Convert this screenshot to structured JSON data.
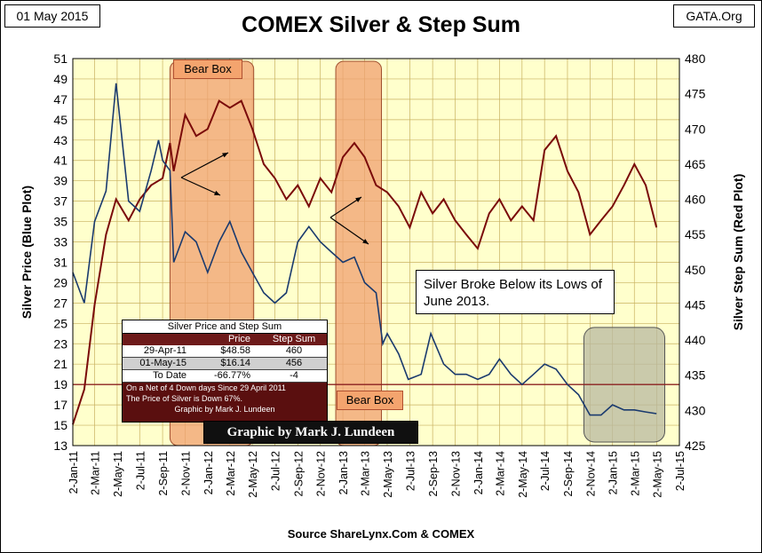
{
  "header": {
    "date": "01 May 2015",
    "title": "COMEX Silver & Step Sum",
    "site": "GATA.Org"
  },
  "footer": "Source ShareLynx.Com & COMEX",
  "colors": {
    "plot_bg": "#ffffcc",
    "grid": "#c8b060",
    "silver_line": "#1a3a6e",
    "stepsum_line": "#7a0a0a",
    "bear_box_fill": "#f0a070",
    "gray_box_fill": "#b8b8a0",
    "threshold_line": "#8b2020"
  },
  "annotations": {
    "bear_box_label": "Bear Box",
    "note": "Silver Broke Below its Lows of June 2013.",
    "credit": "Graphic by Mark J. Lundeen"
  },
  "info_table": {
    "title": "Silver Price and Step Sum",
    "headers": [
      "",
      "Price",
      "Step Sum"
    ],
    "rows": [
      [
        "29-Apr-11",
        "$48.58",
        "460"
      ],
      [
        "01-May-15",
        "$16.14",
        "456"
      ],
      [
        "To Date",
        "-66.77%",
        "-4"
      ]
    ],
    "notes": [
      "On a Net of 4 Down days Since 29 April 2011",
      "The Price of Silver is Down 67%."
    ],
    "credit": "Graphic by Mark J. Lundeen"
  },
  "chart_data": {
    "type": "line",
    "title": "COMEX Silver & Step Sum",
    "xlabel": "Source ShareLynx.Com & COMEX",
    "ylabel_left": "Silver Price  (Blue Plot)",
    "ylabel_right": "Silver Step Sum  (Red Plot)",
    "ylim_left": [
      13,
      51
    ],
    "ylim_right": [
      425,
      480
    ],
    "yticks_left": [
      13,
      15,
      17,
      19,
      21,
      23,
      25,
      27,
      29,
      31,
      33,
      35,
      37,
      39,
      41,
      43,
      45,
      47,
      49,
      51
    ],
    "yticks_right": [
      425,
      430,
      435,
      440,
      445,
      450,
      455,
      460,
      465,
      470,
      475,
      480
    ],
    "x_ticks": [
      "2-Jan-11",
      "2-Mar-11",
      "2-May-11",
      "2-Jul-11",
      "2-Sep-11",
      "2-Nov-11",
      "2-Jan-12",
      "2-Mar-12",
      "2-May-12",
      "2-Jul-12",
      "2-Sep-12",
      "2-Nov-12",
      "2-Jan-13",
      "2-Mar-13",
      "2-May-13",
      "2-Jul-13",
      "2-Sep-13",
      "2-Nov-13",
      "2-Jan-14",
      "2-Mar-14",
      "2-May-14",
      "2-Jul-14",
      "2-Sep-14",
      "2-Nov-14",
      "2-Jan-15",
      "2-Mar-15",
      "2-May-15",
      "2-Jul-15"
    ],
    "threshold_line_left": 19,
    "grid": true,
    "series": [
      {
        "name": "Silver Price",
        "axis": "left",
        "x": [
          "2-Jan-11",
          "2-Feb-11",
          "2-Mar-11",
          "2-Apr-11",
          "29-Apr-11",
          "2-Jun-11",
          "2-Jul-11",
          "2-Aug-11",
          "22-Aug-11",
          "2-Sep-11",
          "22-Sep-11",
          "2-Oct-11",
          "2-Nov-11",
          "2-Dec-11",
          "2-Jan-12",
          "2-Feb-12",
          "2-Mar-12",
          "2-Apr-12",
          "2-May-12",
          "2-Jun-12",
          "2-Jul-12",
          "2-Aug-12",
          "2-Sep-12",
          "2-Oct-12",
          "2-Nov-12",
          "2-Dec-12",
          "2-Jan-13",
          "2-Feb-13",
          "2-Mar-13",
          "2-Apr-13",
          "20-Apr-13",
          "2-May-13",
          "2-Jun-13",
          "28-Jun-13",
          "2-Aug-13",
          "28-Aug-13",
          "2-Oct-13",
          "2-Nov-13",
          "2-Dec-13",
          "2-Jan-14",
          "2-Feb-14",
          "2-Mar-14",
          "2-Apr-14",
          "2-May-14",
          "2-Jun-14",
          "2-Jul-14",
          "2-Aug-14",
          "2-Sep-14",
          "2-Oct-14",
          "2-Nov-14",
          "2-Dec-14",
          "2-Jan-15",
          "2-Feb-15",
          "2-Mar-15",
          "2-Apr-15",
          "1-May-15"
        ],
        "values": [
          30,
          27,
          35,
          38,
          48.58,
          37,
          36,
          40,
          43,
          41,
          40,
          31,
          34,
          33,
          30,
          33,
          35,
          32,
          30,
          28,
          27,
          28,
          33,
          34.5,
          33,
          32,
          31,
          31.5,
          29,
          28,
          23,
          24,
          22,
          19.5,
          20,
          24,
          21,
          20,
          20,
          19.5,
          20,
          21.5,
          20,
          19,
          20,
          21,
          20.5,
          19,
          18,
          16,
          16,
          17,
          16.5,
          16.5,
          16.3,
          16.14
        ]
      },
      {
        "name": "Silver Step Sum",
        "axis": "right",
        "x": [
          "2-Jan-11",
          "2-Feb-11",
          "2-Mar-11",
          "2-Apr-11",
          "29-Apr-11",
          "2-Jun-11",
          "2-Jul-11",
          "2-Aug-11",
          "2-Sep-11",
          "22-Sep-11",
          "2-Oct-11",
          "2-Nov-11",
          "2-Dec-11",
          "2-Jan-12",
          "2-Feb-12",
          "2-Mar-12",
          "2-Apr-12",
          "2-May-12",
          "2-Jun-12",
          "2-Jul-12",
          "2-Aug-12",
          "2-Sep-12",
          "2-Oct-12",
          "2-Nov-12",
          "2-Dec-12",
          "2-Jan-13",
          "2-Feb-13",
          "2-Mar-13",
          "2-Apr-13",
          "2-May-13",
          "2-Jun-13",
          "2-Jul-13",
          "2-Aug-13",
          "2-Sep-13",
          "2-Oct-13",
          "2-Nov-13",
          "2-Dec-13",
          "2-Jan-14",
          "2-Feb-14",
          "2-Mar-14",
          "2-Apr-14",
          "2-May-14",
          "2-Jun-14",
          "2-Jul-14",
          "2-Aug-14",
          "2-Sep-14",
          "2-Oct-14",
          "2-Nov-14",
          "2-Dec-14",
          "2-Jan-15",
          "2-Feb-15",
          "2-Mar-15",
          "2-Apr-15",
          "1-May-15"
        ],
        "values": [
          428,
          433,
          445,
          455,
          460,
          457,
          460,
          462,
          463,
          468,
          464,
          472,
          469,
          470,
          474,
          473,
          474,
          470,
          465,
          463,
          460,
          462,
          459,
          463,
          461,
          466,
          468,
          466,
          462,
          461,
          459,
          456,
          461,
          458,
          460,
          457,
          455,
          453,
          458,
          460,
          457,
          459,
          457,
          467,
          469,
          464,
          461,
          455,
          457,
          459,
          462,
          465,
          462,
          456
        ]
      }
    ]
  }
}
